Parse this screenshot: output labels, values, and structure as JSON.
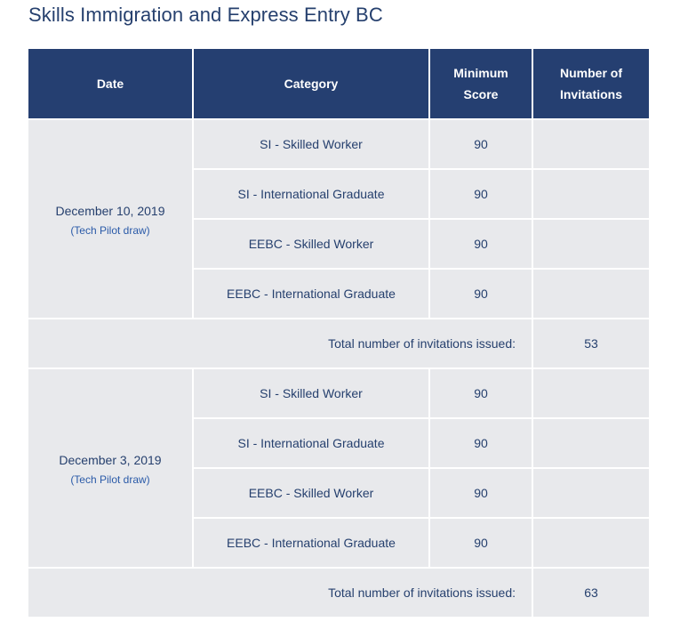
{
  "page": {
    "title": "Skills Immigration and Express Entry BC"
  },
  "table": {
    "headers": {
      "date": "Date",
      "category": "Category",
      "min_score_line1": "Minimum",
      "min_score_line2": "Score",
      "invitations_line1": "Number of",
      "invitations_line2": "Invitations"
    },
    "total_label": "Total number of invitations issued:",
    "draws": [
      {
        "date": "December 10, 2019",
        "note": "(Tech Pilot draw)",
        "rows": [
          {
            "category": "SI - Skilled Worker",
            "score": "90",
            "invitations": ""
          },
          {
            "category": "SI - International Graduate",
            "score": "90",
            "invitations": ""
          },
          {
            "category": "EEBC - Skilled Worker",
            "score": "90",
            "invitations": ""
          },
          {
            "category": "EEBC - International Graduate",
            "score": "90",
            "invitations": ""
          }
        ],
        "total": "53"
      },
      {
        "date": "December 3, 2019",
        "note": "(Tech Pilot draw)",
        "rows": [
          {
            "category": "SI - Skilled Worker",
            "score": "90",
            "invitations": ""
          },
          {
            "category": "SI - International Graduate",
            "score": "90",
            "invitations": ""
          },
          {
            "category": "EEBC - Skilled Worker",
            "score": "90",
            "invitations": ""
          },
          {
            "category": "EEBC - International Graduate",
            "score": "90",
            "invitations": ""
          }
        ],
        "total": "63"
      }
    ]
  },
  "colors": {
    "header_bg": "#253f71",
    "cell_bg": "#e8e9ec",
    "text": "#26406e",
    "note": "#2a5aa8"
  }
}
